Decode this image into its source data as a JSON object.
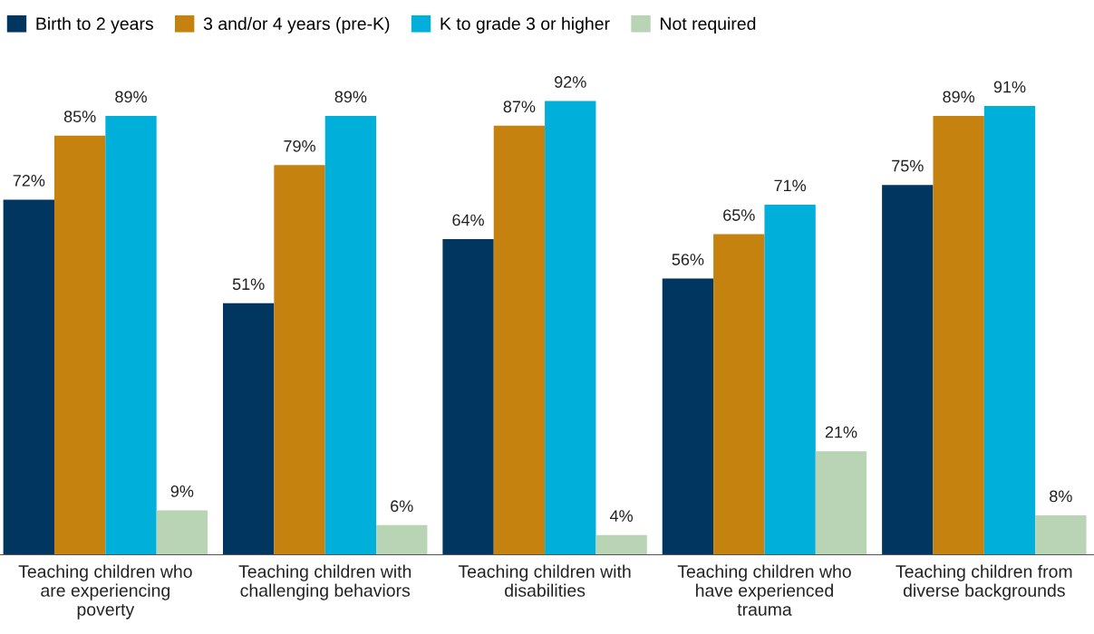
{
  "chart_data": {
    "type": "bar",
    "categories": [
      "Teaching children who\nare experiencing\npoverty",
      "Teaching children with\nchallenging behaviors",
      "Teaching children with\ndisabilities",
      "Teaching children who\nhave experienced\ntrauma",
      "Teaching children from\ndiverse backgrounds"
    ],
    "series": [
      {
        "name": "Birth to 2 years",
        "color": "#003660",
        "values": [
          72,
          51,
          64,
          56,
          75
        ],
        "value_labels": [
          "72%",
          "51%",
          "64%",
          "56%",
          "75%"
        ]
      },
      {
        "name": "3 and/or 4 years (pre-K)",
        "color": "#c5820f",
        "values": [
          85,
          79,
          87,
          65,
          89
        ],
        "value_labels": [
          "85%",
          "79%",
          "87%",
          "65%",
          "89%"
        ]
      },
      {
        "name": "K to grade 3 or higher",
        "color": "#00b0da",
        "values": [
          89,
          89,
          92,
          71,
          91
        ],
        "value_labels": [
          "89%",
          "89%",
          "92%",
          "71%",
          "91%"
        ]
      },
      {
        "name": "Not required",
        "color": "#b8d4b4",
        "values": [
          9,
          6,
          4,
          21,
          8
        ],
        "value_labels": [
          "9%",
          "6%",
          "4%",
          "21%",
          "8%"
        ]
      }
    ],
    "grid": false,
    "legend": "top left"
  }
}
